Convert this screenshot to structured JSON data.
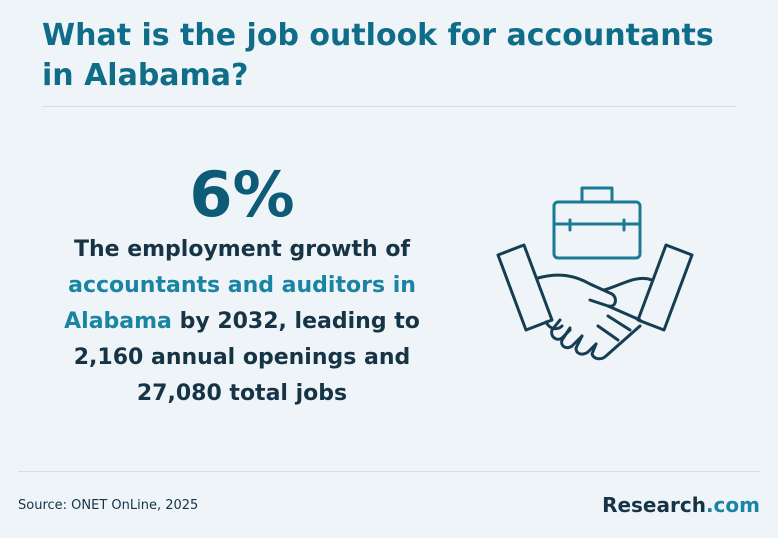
{
  "header": {
    "title": "What is the job outlook for accountants in Alabama?"
  },
  "stat": {
    "value": "6%",
    "description": [
      {
        "text": "The employment growth of ",
        "highlight": false
      },
      {
        "text": "accountants and auditors in Alabama",
        "highlight": true
      },
      {
        "text": " by 2032, leading to 2,160 annual openings and 27,080 total jobs",
        "highlight": false
      }
    ]
  },
  "footer": {
    "source": "Source: ONET OnLine, 2025",
    "brand": {
      "name": "Research",
      "suffix": ".com"
    }
  }
}
